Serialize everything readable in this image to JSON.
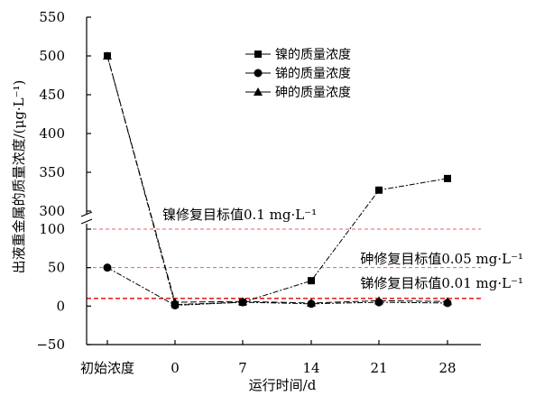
{
  "chart_data": {
    "type": "line",
    "xlabel": "运行时间/d",
    "ylabel": "出液重金属的质量浓度/(μg·L⁻¹)",
    "categories": [
      "初始浓度",
      "0",
      "7",
      "14",
      "21",
      "28"
    ],
    "y_axis": {
      "broken": true,
      "lower_range": [
        -50,
        100
      ],
      "upper_range": [
        300,
        550
      ],
      "lower_ticks": [
        "−50",
        "0",
        "50",
        "100"
      ],
      "upper_ticks": [
        "300",
        "350",
        "400",
        "450",
        "500",
        "550"
      ]
    },
    "series": [
      {
        "name": "镍的质量浓度",
        "marker": "square",
        "values": [
          500,
          2,
          5,
          33,
          327,
          342
        ]
      },
      {
        "name": "锑的质量浓度",
        "marker": "circle",
        "values": [
          50,
          1,
          5,
          3,
          5,
          4
        ]
      },
      {
        "name": "砷的质量浓度",
        "marker": "triangle",
        "values": [
          500,
          5,
          6,
          4,
          7,
          6
        ]
      }
    ],
    "reference_lines": [
      {
        "label": "镍修复目标值0.1 mg·L⁻¹",
        "value": 100,
        "color": "#e06666"
      },
      {
        "label": "砷修复目标值0.05 mg·L⁻¹",
        "value": 50,
        "color": "#e06666"
      },
      {
        "label": "锑修复目标值0.01 mg·L⁻¹",
        "value": 10,
        "color": "#e60000"
      }
    ],
    "legend_placement": "top-right",
    "grid": false
  }
}
